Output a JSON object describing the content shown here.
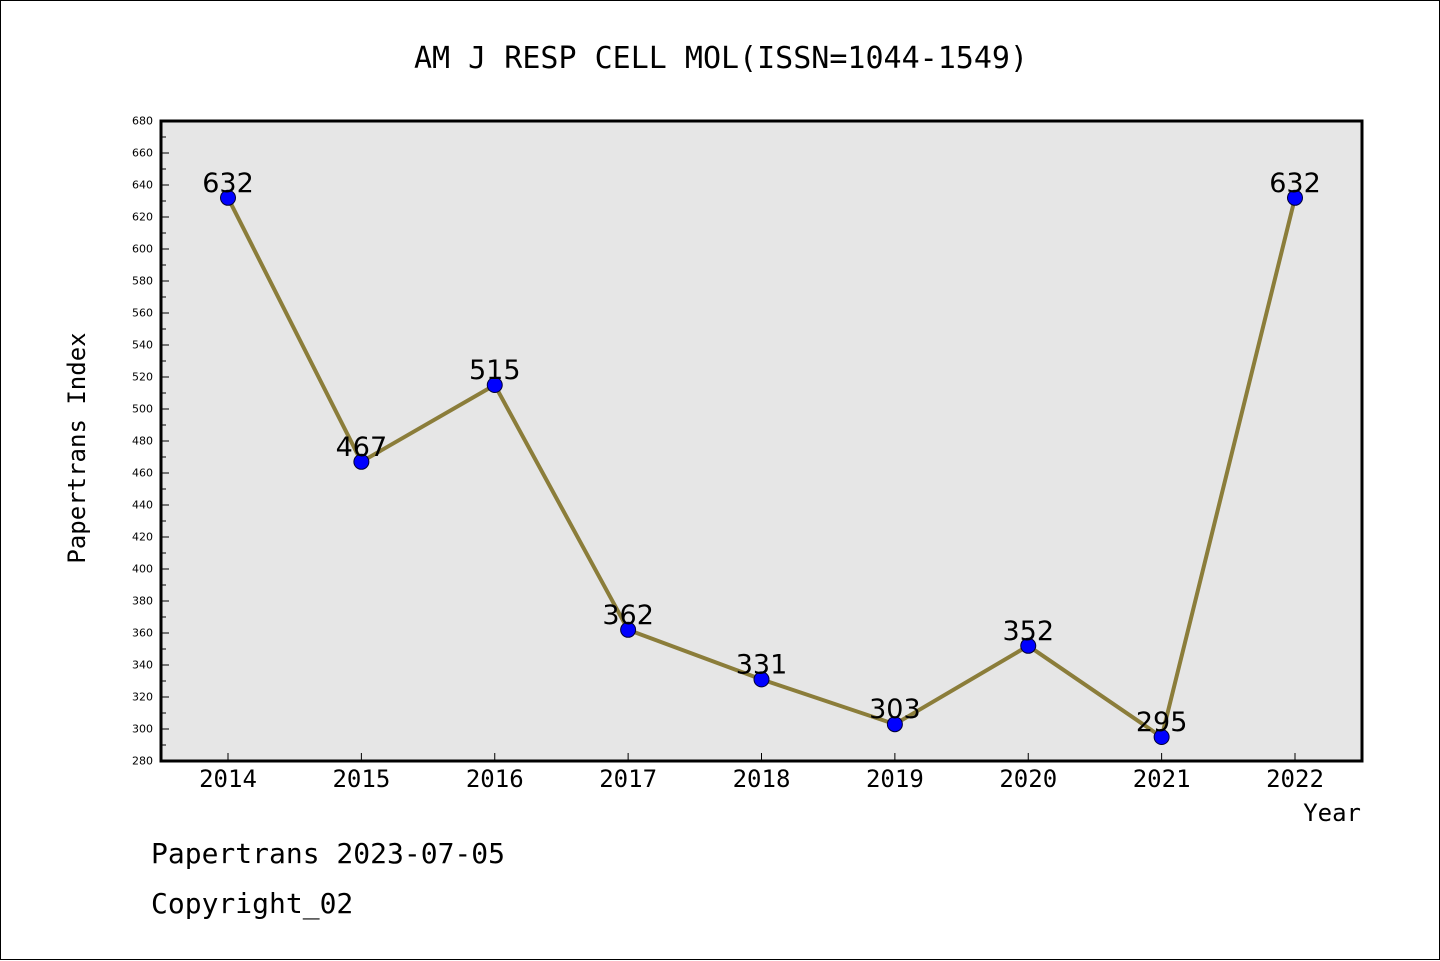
{
  "chart_data": {
    "type": "line",
    "title": "AM J RESP CELL MOL(ISSN=1044-1549)",
    "xlabel": "Year",
    "ylabel": "Papertrans Index",
    "categories": [
      "2014",
      "2015",
      "2016",
      "2017",
      "2018",
      "2019",
      "2020",
      "2021",
      "2022"
    ],
    "series": [
      {
        "values": [
          632,
          467,
          515,
          362,
          331,
          303,
          352,
          295,
          632
        ]
      }
    ],
    "data_labels": [
      "632",
      "467",
      "515",
      "362",
      "331",
      "303",
      "352",
      "295",
      "632"
    ],
    "ylim": [
      280,
      680
    ],
    "y_ticks": [
      "280",
      "300",
      "320",
      "340",
      "360",
      "380",
      "400",
      "420",
      "440",
      "460",
      "480",
      "500",
      "520",
      "540",
      "560",
      "580",
      "600",
      "620",
      "640",
      "660",
      "680"
    ],
    "grid": false,
    "line_color": "#8b7d3a",
    "marker_color": "#0000ff",
    "plot_background": "#e6e6e6"
  },
  "footer": {
    "line1": "Papertrans 2023-07-05",
    "line2": "Copyright_02"
  }
}
